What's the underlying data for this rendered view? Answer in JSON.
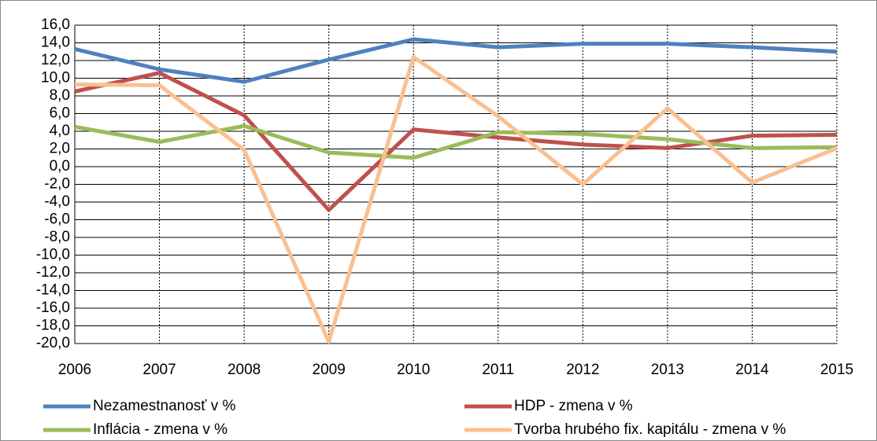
{
  "chart_data": {
    "type": "line",
    "categories": [
      "2006",
      "2007",
      "2008",
      "2009",
      "2010",
      "2011",
      "2012",
      "2013",
      "2014",
      "2015"
    ],
    "series": [
      {
        "name": "Nezamestnanosť v %",
        "color": "#4f81bd",
        "values": [
          13.3,
          11.0,
          9.6,
          12.1,
          14.4,
          13.5,
          13.9,
          13.9,
          13.5,
          13.0
        ]
      },
      {
        "name": "HDP - zmena v %",
        "color": "#c0504d",
        "values": [
          8.5,
          10.6,
          5.8,
          -4.9,
          4.2,
          3.3,
          2.5,
          2.1,
          3.5,
          3.6
        ]
      },
      {
        "name": "Inflácia - zmena v %",
        "color": "#9bbb59",
        "values": [
          4.5,
          2.8,
          4.6,
          1.6,
          1.0,
          3.9,
          3.7,
          3.1,
          2.1,
          2.2
        ]
      },
      {
        "name": "Tvorba hrubého fix. kapitálu - zmena v %",
        "color": "#fac090",
        "values": [
          9.3,
          9.2,
          1.9,
          -19.8,
          12.4,
          5.7,
          -2.0,
          6.6,
          -1.8,
          2.1
        ]
      }
    ],
    "ylim": [
      -20,
      16
    ],
    "yticks": [
      {
        "value": -20,
        "label": "-20,0"
      },
      {
        "value": -18,
        "label": "-18,0"
      },
      {
        "value": -16,
        "label": "-16,0"
      },
      {
        "value": -14,
        "label": "-14,0"
      },
      {
        "value": -12,
        "label": "-12,0"
      },
      {
        "value": -10,
        "label": "-10,0"
      },
      {
        "value": -8,
        "label": "-8,0"
      },
      {
        "value": -6,
        "label": "-6,0"
      },
      {
        "value": -4,
        "label": "-4,0"
      },
      {
        "value": -2,
        "label": "-2,0"
      },
      {
        "value": 0,
        "label": "0,0"
      },
      {
        "value": 2,
        "label": "2,0"
      },
      {
        "value": 4,
        "label": "4,0"
      },
      {
        "value": 6,
        "label": "6,0"
      },
      {
        "value": 8,
        "label": "8,0"
      },
      {
        "value": 10,
        "label": "10,0"
      },
      {
        "value": 12,
        "label": "12,0"
      },
      {
        "value": 14,
        "label": "14,0"
      },
      {
        "value": 16,
        "label": "16,0"
      }
    ],
    "grid": true
  }
}
